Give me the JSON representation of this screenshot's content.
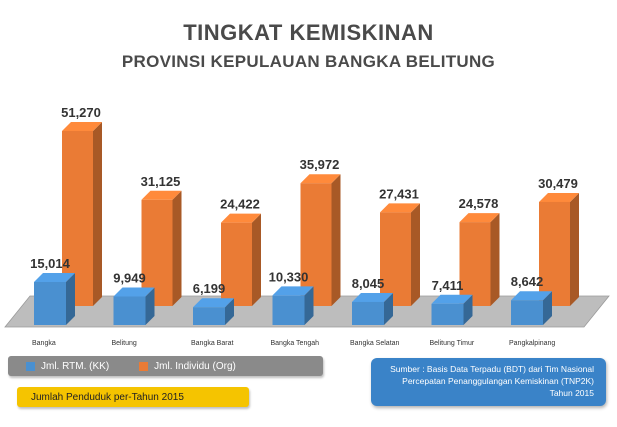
{
  "chart_data": {
    "type": "bar",
    "title": "TINGKAT KEMISKINAN",
    "subtitle": "PROVINSI KEPULAUAN BANGKA BELITUNG",
    "categories": [
      "Bangka",
      "Belitung",
      "Bangka Barat",
      "Bangka Tengah",
      "Bangka Selatan",
      "Belitung Timur",
      "Pangkalpinang"
    ],
    "series": [
      {
        "name": "Jml. RTM. (KK)",
        "color": "#4a90d0",
        "values": [
          15014,
          9949,
          6199,
          10330,
          8045,
          7411,
          8642
        ],
        "labels": [
          "15,014",
          "9,949",
          "6,199",
          "10,330",
          "8,045",
          "7,411",
          "8,642"
        ]
      },
      {
        "name": "Jml. Individu (Org)",
        "color": "#ea7b35",
        "values": [
          51270,
          31125,
          24422,
          35972,
          27431,
          24578,
          30479
        ],
        "labels": [
          "51,270",
          "31,125",
          "24,422",
          "35,972",
          "27,431",
          "24,578",
          "30,479"
        ]
      }
    ],
    "ylim": [
      0,
      55000
    ],
    "grid": false,
    "legend": "bottom-left"
  },
  "note": "Jumlah Penduduk per-Tahun 2015",
  "source": {
    "line1": "Sumber : Basis Data Terpadu (BDT) dari Tim Nasional",
    "line2": "Percepatan Penanggulangan Kemiskinan (TNP2K)",
    "line3": "Tahun 2015"
  }
}
